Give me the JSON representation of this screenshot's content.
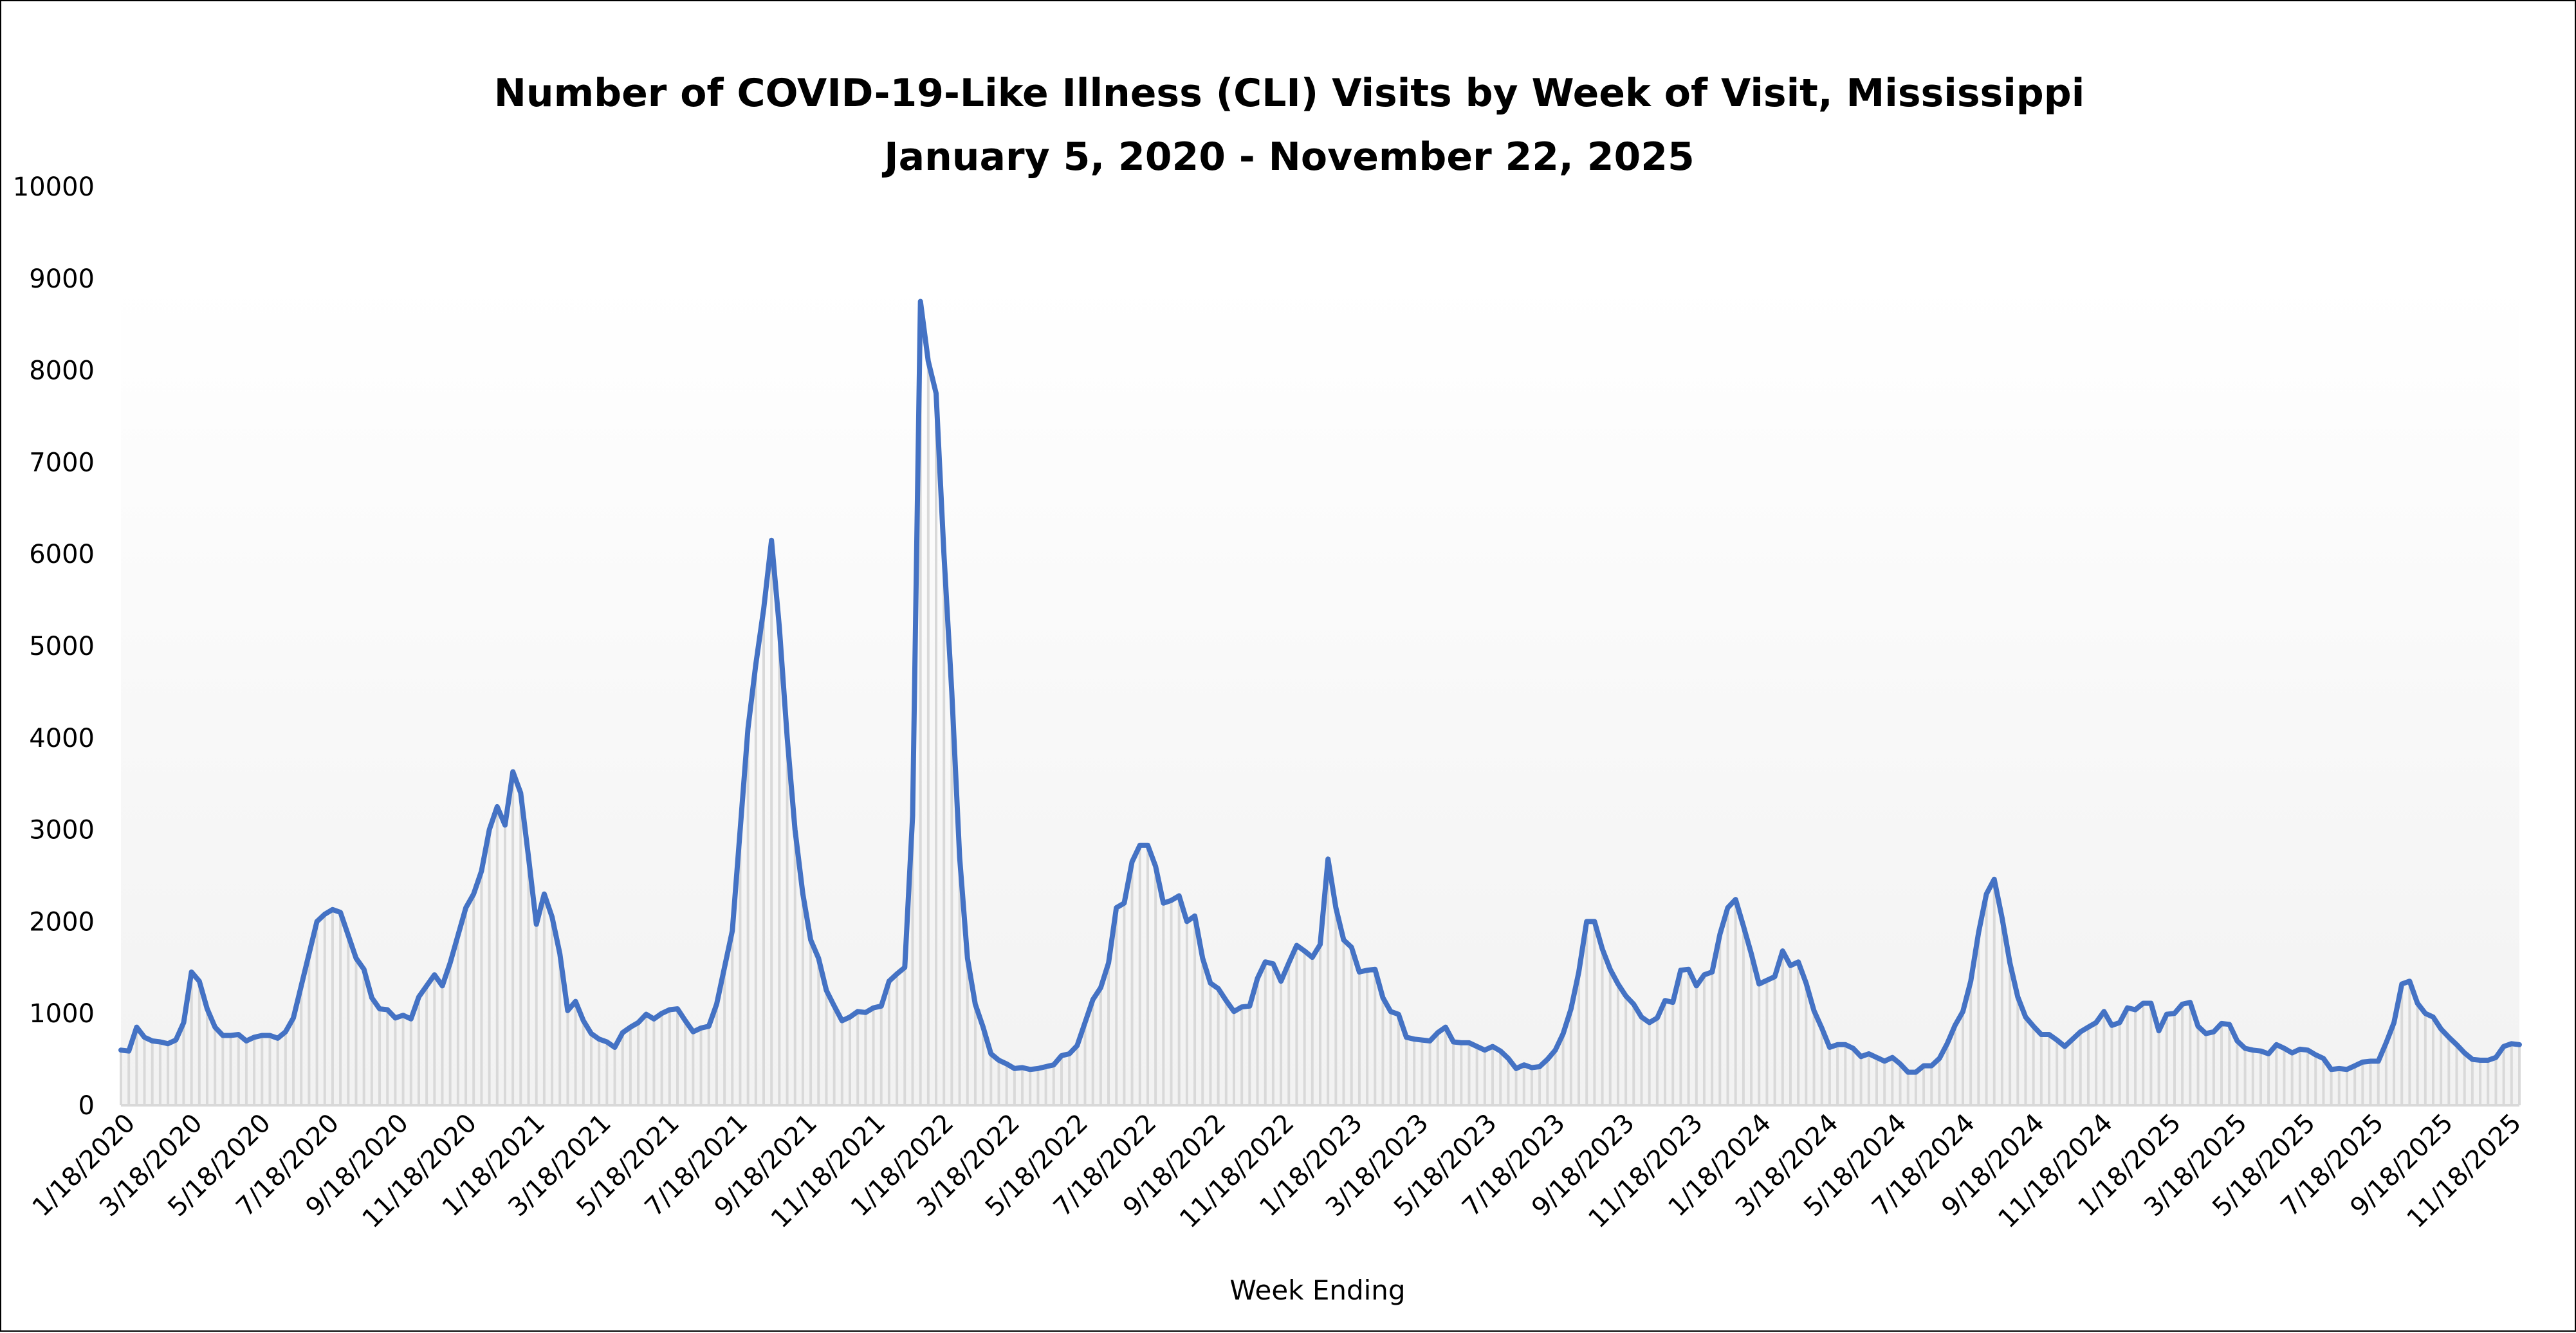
{
  "chart_data": {
    "type": "line",
    "title": "Number of COVID-19-Like Illness (CLI) Visits by Week of Visit, Mississippi",
    "subtitle": "January 5, 2020 - November 22, 2025",
    "xlabel": "Week Ending",
    "ylabel": "",
    "ylim": [
      0,
      10000
    ],
    "yticks": [
      "0",
      "1000",
      "2000",
      "3000",
      "4000",
      "5000",
      "6000",
      "7000",
      "8000",
      "9000",
      "10000"
    ],
    "xticks": [
      "1/18/2020",
      "3/18/2020",
      "5/18/2020",
      "7/18/2020",
      "9/18/2020",
      "11/18/2020",
      "1/18/2021",
      "3/18/2021",
      "5/18/2021",
      "7/18/2021",
      "9/18/2021",
      "11/18/2021",
      "1/18/2022",
      "3/18/2022",
      "5/18/2022",
      "7/18/2022",
      "9/18/2022",
      "11/18/2022",
      "1/18/2023",
      "3/18/2023",
      "5/18/2023",
      "7/18/2023",
      "9/18/2023",
      "11/18/2023",
      "1/18/2024",
      "3/18/2024",
      "5/18/2024",
      "7/18/2024",
      "9/18/2024",
      "11/18/2024",
      "1/18/2025",
      "3/18/2025",
      "5/18/2025",
      "7/18/2025",
      "9/18/2025",
      "11/18/2025"
    ],
    "grid": false,
    "drop_lines": true,
    "legend": "none",
    "colors": {
      "line": "#4472C4",
      "drop_lines": "#D9D9D9",
      "plot_bg_top": "#FFFFFF",
      "plot_bg_bottom": "#F2F2F2"
    },
    "x": [
      "2020-01-11",
      "2020-01-18",
      "2020-01-25",
      "2020-02-01",
      "2020-02-08",
      "2020-02-15",
      "2020-02-22",
      "2020-02-29",
      "2020-03-07",
      "2020-03-14",
      "2020-03-21",
      "2020-03-28",
      "2020-04-04",
      "2020-04-11",
      "2020-04-18",
      "2020-04-25",
      "2020-05-02",
      "2020-05-09",
      "2020-05-16",
      "2020-05-23",
      "2020-05-30",
      "2020-06-06",
      "2020-06-13",
      "2020-06-20",
      "2020-06-27",
      "2020-07-04",
      "2020-07-11",
      "2020-07-18",
      "2020-07-25",
      "2020-08-01",
      "2020-08-08",
      "2020-08-15",
      "2020-08-22",
      "2020-08-29",
      "2020-09-05",
      "2020-09-12",
      "2020-09-19",
      "2020-09-26",
      "2020-10-03",
      "2020-10-10",
      "2020-10-17",
      "2020-10-24",
      "2020-10-31",
      "2020-11-07",
      "2020-11-14",
      "2020-11-21",
      "2020-11-28",
      "2020-12-05",
      "2020-12-12",
      "2020-12-19",
      "2020-12-26",
      "2021-01-02",
      "2021-01-09",
      "2021-01-16",
      "2021-01-23",
      "2021-01-30",
      "2021-02-06",
      "2021-02-13",
      "2021-02-20",
      "2021-02-27",
      "2021-03-06",
      "2021-03-13",
      "2021-03-20",
      "2021-03-27",
      "2021-04-03",
      "2021-04-10",
      "2021-04-17",
      "2021-04-24",
      "2021-05-01",
      "2021-05-08",
      "2021-05-15",
      "2021-05-22",
      "2021-05-29",
      "2021-06-05",
      "2021-06-12",
      "2021-06-19",
      "2021-06-26",
      "2021-07-03",
      "2021-07-10",
      "2021-07-17",
      "2021-07-24",
      "2021-07-31",
      "2021-08-07",
      "2021-08-14",
      "2021-08-21",
      "2021-08-28",
      "2021-09-04",
      "2021-09-11",
      "2021-09-18",
      "2021-09-25",
      "2021-10-02",
      "2021-10-09",
      "2021-10-16",
      "2021-10-23",
      "2021-10-30",
      "2021-11-06",
      "2021-11-13",
      "2021-11-20",
      "2021-11-27",
      "2021-12-04",
      "2021-12-11",
      "2021-12-18",
      "2021-12-25",
      "2022-01-01",
      "2022-01-08",
      "2022-01-15",
      "2022-01-22",
      "2022-01-29",
      "2022-02-05",
      "2022-02-12",
      "2022-02-19",
      "2022-02-26",
      "2022-03-05",
      "2022-03-12",
      "2022-03-19",
      "2022-03-26",
      "2022-04-02",
      "2022-04-09",
      "2022-04-16",
      "2022-04-23",
      "2022-04-30",
      "2022-05-07",
      "2022-05-14",
      "2022-05-21",
      "2022-05-28",
      "2022-06-04",
      "2022-06-11",
      "2022-06-18",
      "2022-06-25",
      "2022-07-02",
      "2022-07-09",
      "2022-07-16",
      "2022-07-23",
      "2022-07-30",
      "2022-08-06",
      "2022-08-13",
      "2022-08-20",
      "2022-08-27",
      "2022-09-03",
      "2022-09-10",
      "2022-09-17",
      "2022-09-24",
      "2022-10-01",
      "2022-10-08",
      "2022-10-15",
      "2022-10-22",
      "2022-10-29",
      "2022-11-05",
      "2022-11-12",
      "2022-11-19",
      "2022-11-26",
      "2022-12-03",
      "2022-12-10",
      "2022-12-17",
      "2022-12-24",
      "2022-12-31",
      "2023-01-07",
      "2023-01-14",
      "2023-01-21",
      "2023-01-28",
      "2023-02-04",
      "2023-02-11",
      "2023-02-18",
      "2023-02-25",
      "2023-03-04",
      "2023-03-11",
      "2023-03-18",
      "2023-03-25",
      "2023-04-01",
      "2023-04-08",
      "2023-04-15",
      "2023-04-22",
      "2023-04-29",
      "2023-05-06",
      "2023-05-13",
      "2023-05-20",
      "2023-05-27",
      "2023-06-03",
      "2023-06-10",
      "2023-06-17",
      "2023-06-24",
      "2023-07-01",
      "2023-07-08",
      "2023-07-15",
      "2023-07-22",
      "2023-07-29",
      "2023-08-05",
      "2023-08-12",
      "2023-08-19",
      "2023-08-26",
      "2023-09-02",
      "2023-09-09",
      "2023-09-16",
      "2023-09-23",
      "2023-09-30",
      "2023-10-07",
      "2023-10-14",
      "2023-10-21",
      "2023-10-28",
      "2023-11-04",
      "2023-11-11",
      "2023-11-18",
      "2023-11-25",
      "2023-12-02",
      "2023-12-09",
      "2023-12-16",
      "2023-12-23",
      "2023-12-30",
      "2024-01-06",
      "2024-01-13",
      "2024-01-20",
      "2024-01-27",
      "2024-02-03",
      "2024-02-10",
      "2024-02-17",
      "2024-02-24",
      "2024-03-02",
      "2024-03-09",
      "2024-03-16",
      "2024-03-23",
      "2024-03-30",
      "2024-04-06",
      "2024-04-13",
      "2024-04-20",
      "2024-04-27",
      "2024-05-04",
      "2024-05-11",
      "2024-05-18",
      "2024-05-25",
      "2024-06-01",
      "2024-06-08",
      "2024-06-15",
      "2024-06-22",
      "2024-06-29",
      "2024-07-06",
      "2024-07-13",
      "2024-07-20",
      "2024-07-27",
      "2024-08-03",
      "2024-08-10",
      "2024-08-17",
      "2024-08-24",
      "2024-08-31",
      "2024-09-07",
      "2024-09-14",
      "2024-09-21",
      "2024-09-28",
      "2024-10-05",
      "2024-10-12",
      "2024-10-19",
      "2024-10-26",
      "2024-11-02",
      "2024-11-09",
      "2024-11-16",
      "2024-11-23",
      "2024-11-30",
      "2024-12-07",
      "2024-12-14",
      "2024-12-21",
      "2024-12-28",
      "2025-01-04",
      "2025-01-11",
      "2025-01-18",
      "2025-01-25",
      "2025-02-01",
      "2025-02-08",
      "2025-02-15",
      "2025-02-22",
      "2025-03-01",
      "2025-03-08",
      "2025-03-15",
      "2025-03-22",
      "2025-03-29",
      "2025-04-05",
      "2025-04-12",
      "2025-04-19",
      "2025-04-26",
      "2025-05-03",
      "2025-05-10",
      "2025-05-17",
      "2025-05-24",
      "2025-05-31",
      "2025-06-07",
      "2025-06-14",
      "2025-06-21",
      "2025-06-28",
      "2025-07-05",
      "2025-07-12",
      "2025-07-19",
      "2025-07-26",
      "2025-08-02",
      "2025-08-09",
      "2025-08-16",
      "2025-08-23",
      "2025-08-30",
      "2025-09-06",
      "2025-09-13",
      "2025-09-20",
      "2025-09-27",
      "2025-10-04",
      "2025-10-11",
      "2025-10-18",
      "2025-10-25",
      "2025-11-01",
      "2025-11-08",
      "2025-11-15",
      "2025-11-22"
    ],
    "values": [
      600,
      590,
      850,
      740,
      700,
      690,
      670,
      710,
      900,
      1450,
      1350,
      1050,
      850,
      760,
      760,
      770,
      700,
      740,
      760,
      760,
      730,
      800,
      950,
      1300,
      1650,
      2000,
      2080,
      2130,
      2100,
      1850,
      1600,
      1480,
      1170,
      1050,
      1040,
      950,
      980,
      940,
      1180,
      1300,
      1420,
      1300,
      1550,
      1850,
      2150,
      2300,
      2550,
      3000,
      3250,
      3050,
      3630,
      3400,
      2700,
      1970,
      2300,
      2050,
      1650,
      1030,
      1130,
      920,
      780,
      720,
      690,
      630,
      790,
      850,
      900,
      990,
      940,
      1000,
      1040,
      1050,
      920,
      800,
      840,
      860,
      1100,
      1500,
      1900,
      3000,
      4100,
      4800,
      5400,
      6150,
      5200,
      4000,
      3000,
      2300,
      1800,
      1600,
      1250,
      1080,
      920,
      960,
      1020,
      1010,
      1060,
      1080,
      1350,
      1430,
      1500,
      3150,
      8750,
      8100,
      7750,
      6000,
      4500,
      2700,
      1600,
      1100,
      850,
      560,
      490,
      450,
      400,
      410,
      390,
      400,
      420,
      440,
      540,
      560,
      650,
      900,
      1150,
      1280,
      1550,
      2150,
      2200,
      2650,
      2830,
      2830,
      2600,
      2200,
      2230,
      2280,
      2000,
      2060,
      1600,
      1330,
      1270,
      1140,
      1020,
      1070,
      1080,
      1380,
      1560,
      1540,
      1350,
      1550,
      1740,
      1680,
      1610,
      1750,
      2680,
      2150,
      1800,
      1720,
      1450,
      1470,
      1480,
      1170,
      1020,
      990,
      740,
      720,
      710,
      700,
      790,
      850,
      690,
      680,
      680,
      640,
      600,
      640,
      590,
      510,
      400,
      440,
      410,
      420,
      500,
      600,
      780,
      1050,
      1450,
      2000,
      2000,
      1700,
      1480,
      1320,
      1190,
      1100,
      960,
      900,
      950,
      1140,
      1120,
      1470,
      1480,
      1300,
      1420,
      1450,
      1860,
      2150,
      2240,
      1950,
      1650,
      1320,
      1360,
      1400,
      1680,
      1520,
      1560,
      1330,
      1030,
      840,
      630,
      660,
      660,
      620,
      530,
      560,
      520,
      480,
      520,
      450,
      360,
      360,
      430,
      430,
      510,
      670,
      870,
      1020,
      1350,
      1880,
      2300,
      2460,
      2040,
      1550,
      1180,
      960,
      860,
      770,
      770,
      710,
      640,
      720,
      800,
      850,
      900,
      1020,
      870,
      900,
      1060,
      1040,
      1110,
      1110,
      810,
      990,
      1000,
      1100,
      1120,
      860,
      780,
      800,
      890,
      880,
      700,
      620,
      600,
      590,
      560,
      660,
      620,
      570,
      610,
      600,
      550,
      510,
      390,
      400,
      390,
      430,
      470,
      480,
      480,
      680,
      900,
      1320,
      1350,
      1110,
      1000,
      960,
      830,
      740,
      660,
      570,
      500,
      490,
      490,
      520,
      640,
      670,
      660
    ]
  }
}
